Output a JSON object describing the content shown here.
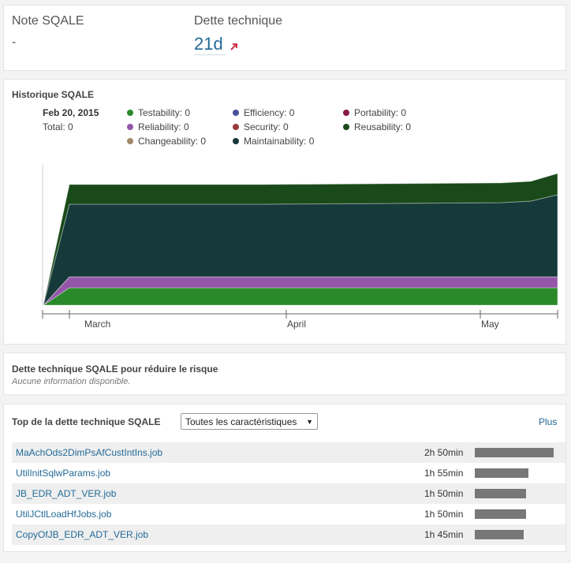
{
  "measures": {
    "sqale_label": "Note SQALE",
    "sqale_value": "-",
    "debt_label": "Dette technique",
    "debt_value": "21d"
  },
  "history": {
    "title": "Historique SQALE",
    "legend_date": "Feb 20, 2015",
    "legend_total": "Total: 0",
    "legend_items": [
      {
        "label": "Testability: 0",
        "color": "#2a8a2a"
      },
      {
        "label": "Efficiency: 0",
        "color": "#4a4f9a"
      },
      {
        "label": "Portability: 0",
        "color": "#8a1b48"
      },
      {
        "label": "Reliability: 0",
        "color": "#9457a8"
      },
      {
        "label": "Security: 0",
        "color": "#9a3a3a"
      },
      {
        "label": "Reusability: 0",
        "color": "#1a4a1a"
      },
      {
        "label": "Changeability: 0",
        "color": "#a08a68"
      },
      {
        "label": "Maintainability: 0",
        "color": "#163a3a"
      }
    ],
    "x_axis_labels": [
      "March",
      "April",
      "May"
    ]
  },
  "chart_data": {
    "type": "area",
    "stacked": true,
    "x": [
      "Feb 20",
      "Feb 27",
      "Mar 15",
      "Apr 15",
      "May 14",
      "May 20",
      "May 24"
    ],
    "x_ticks": [
      "March",
      "April",
      "May"
    ],
    "series": [
      {
        "name": "Testability",
        "color": "#2a8a2a",
        "values": [
          0,
          22,
          22,
          22,
          22,
          22,
          22
        ]
      },
      {
        "name": "Reliability",
        "color": "#9457a8",
        "values": [
          0,
          14,
          14,
          14,
          14,
          14,
          14
        ]
      },
      {
        "name": "Changeability",
        "color": "#a08a68",
        "values": [
          0,
          0,
          0,
          0,
          0,
          0,
          0
        ]
      },
      {
        "name": "Maintainability",
        "color": "#163a3a",
        "values": [
          0,
          92,
          92,
          92,
          94,
          96,
          104
        ]
      },
      {
        "name": "Reusability",
        "color": "#1a4a1a",
        "values": [
          0,
          25,
          25,
          25,
          25,
          25,
          27
        ]
      }
    ],
    "grid": false,
    "legend_position": "top"
  },
  "debt_section": {
    "title": "Dette technique SQALE pour réduire le risque",
    "no_info": "Aucune information disponible."
  },
  "top_debt": {
    "title": "Top de la dette technique SQALE",
    "select_value": "Toutes les caractéristiques",
    "more_link": "Plus",
    "rows": [
      {
        "name": "MaAchOds2DimPsAfCustIntIns.job",
        "value": "2h 50min",
        "fraction": 1.0
      },
      {
        "name": "UtilInitSqlwParams.job",
        "value": "1h 55min",
        "fraction": 0.68
      },
      {
        "name": "JB_EDR_ADT_VER.job",
        "value": "1h 50min",
        "fraction": 0.65
      },
      {
        "name": "UtilJCtlLoadHfJobs.job",
        "value": "1h 50min",
        "fraction": 0.65
      },
      {
        "name": "CopyOfJB_EDR_ADT_VER.job",
        "value": "1h 45min",
        "fraction": 0.62
      }
    ]
  }
}
